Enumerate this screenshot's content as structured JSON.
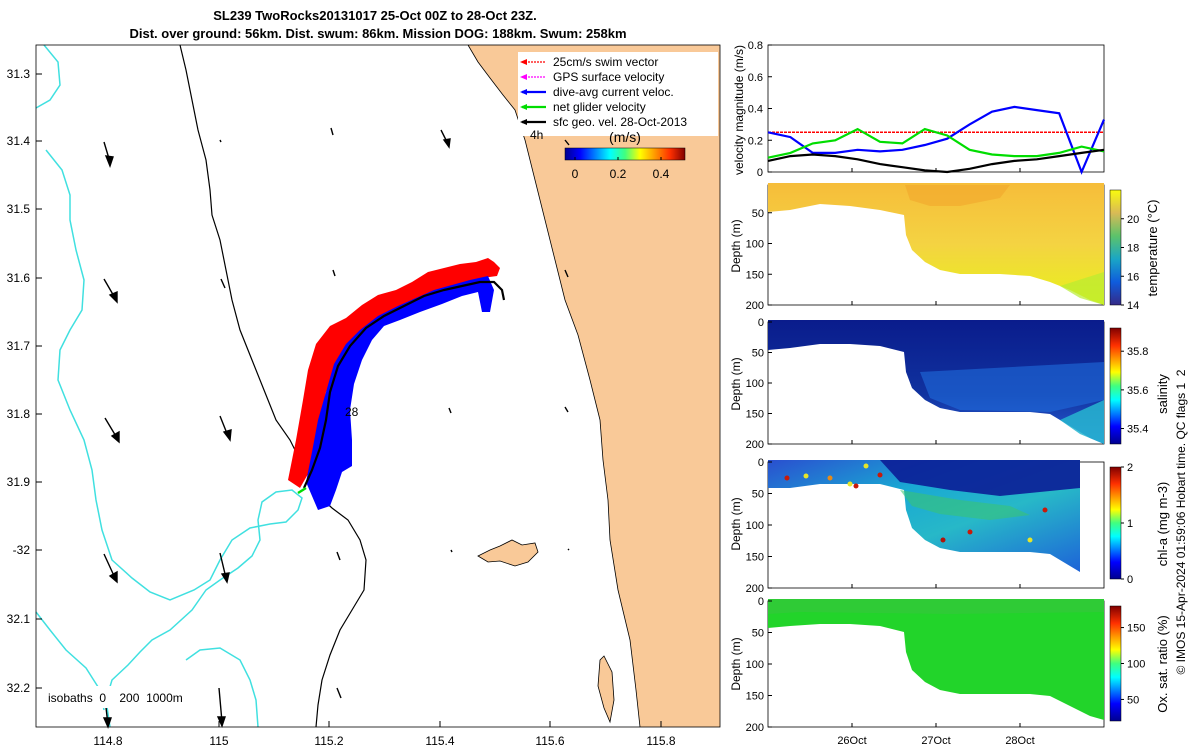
{
  "header": {
    "line1": "SL239 TwoRocks20131017 25-Oct 00Z to 28-Oct 23Z.",
    "line2": "Dist. over ground: 56km. Dist. swum: 86km. Mission DOG: 188km. Swum: 258km"
  },
  "map": {
    "legend": [
      {
        "label": "25cm/s swim vector",
        "color": "#ff0000"
      },
      {
        "label": "GPS surface velocity",
        "color": "#ff00ff"
      },
      {
        "label": "dive-avg current veloc.",
        "color": "#0000ff"
      },
      {
        "label": "net glider velocity",
        "color": "#00dd00"
      },
      {
        "label": "sfc geo. vel. 28-Oct-2013",
        "color": "#000000"
      }
    ],
    "colorbar": {
      "unit_label": "(m/s)",
      "ticks": [
        "0",
        "0.2",
        "0.4"
      ]
    },
    "marker_4h": "4h",
    "marker_28": "28",
    "isobaths_label": "isobaths  0    200  1000m",
    "lat_ticks": [
      "31.3",
      "31.4",
      "31.5",
      "31.6",
      "31.7",
      "31.8",
      "31.9",
      "-32",
      "32.1",
      "32.2"
    ],
    "lon_ticks": [
      "114.8",
      "115",
      "115.2",
      "115.4",
      "115.6",
      "115.8"
    ],
    "colors": {
      "land": "#f9c998",
      "isobath_200": "#000000",
      "isobath_1000": "#40e0e0"
    }
  },
  "panels": {
    "velocity": {
      "ylabel": "velocity magnitude (m/s)",
      "yticks": [
        "0",
        "0.2",
        "0.4",
        "0.6",
        "0.8"
      ]
    },
    "temperature": {
      "ylabel": "Depth (m)",
      "cbar_label": "temperature (°C)",
      "cbar_ticks": [
        "14",
        "16",
        "18",
        "20"
      ],
      "depth_ticks": [
        "50",
        "100",
        "150",
        "200"
      ]
    },
    "salinity": {
      "ylabel": "Depth (m)",
      "cbar_label": "salinity",
      "cbar_ticks": [
        "35.4",
        "35.6",
        "35.8"
      ],
      "depth_ticks": [
        "0",
        "50",
        "100",
        "150",
        "200"
      ]
    },
    "chla": {
      "ylabel": "Depth (m)",
      "cbar_label": "chl-a (mg m-3)",
      "cbar_ticks": [
        "0",
        "1",
        "2"
      ],
      "depth_ticks": [
        "0",
        "50",
        "100",
        "150",
        "200"
      ]
    },
    "oxygen": {
      "ylabel": "Depth (m)",
      "cbar_label": "Ox. sat. ratio (%)",
      "cbar_ticks": [
        "50",
        "100",
        "150"
      ],
      "depth_ticks": [
        "0",
        "50",
        "100",
        "150",
        "200"
      ]
    },
    "time_ticks": [
      "26Oct",
      "27Oct",
      "28Oct"
    ]
  },
  "footer_vertical": "© IMOS 15-Apr-2024 01:59:06 Hobart time. QC flags 1  2",
  "chart_data": [
    {
      "type": "line",
      "title": "",
      "ylabel": "velocity magnitude (m/s)",
      "ylim": [
        0,
        0.8
      ],
      "x_range": [
        "25-Oct 00Z",
        "28-Oct 23Z"
      ],
      "series": [
        {
          "name": "25cm/s swim vector",
          "color": "#ff0000",
          "values": [
            0.25,
            0.25,
            0.25,
            0.25,
            0.25,
            0.25,
            0.25,
            0.25,
            0.25,
            0.25,
            0.25,
            0.25,
            0.25,
            0.25,
            0.25,
            0.25
          ]
        },
        {
          "name": "dive-avg current veloc.",
          "color": "#0000ff",
          "values": [
            0.25,
            0.22,
            0.12,
            0.12,
            0.14,
            0.13,
            0.14,
            0.17,
            0.21,
            0.3,
            0.38,
            0.41,
            0.39,
            0.37,
            0.0,
            0.33
          ]
        },
        {
          "name": "net glider velocity",
          "color": "#00dd00",
          "values": [
            0.09,
            0.12,
            0.18,
            0.2,
            0.27,
            0.19,
            0.18,
            0.27,
            0.23,
            0.14,
            0.11,
            0.1,
            0.1,
            0.12,
            0.16,
            0.13
          ]
        },
        {
          "name": "sfc geo. vel. 28-Oct-2013",
          "color": "#000000",
          "values": [
            0.07,
            0.1,
            0.11,
            0.1,
            0.08,
            0.05,
            0.03,
            0.01,
            0.0,
            0.02,
            0.05,
            0.07,
            0.08,
            0.1,
            0.12,
            0.14
          ]
        }
      ]
    }
  ]
}
